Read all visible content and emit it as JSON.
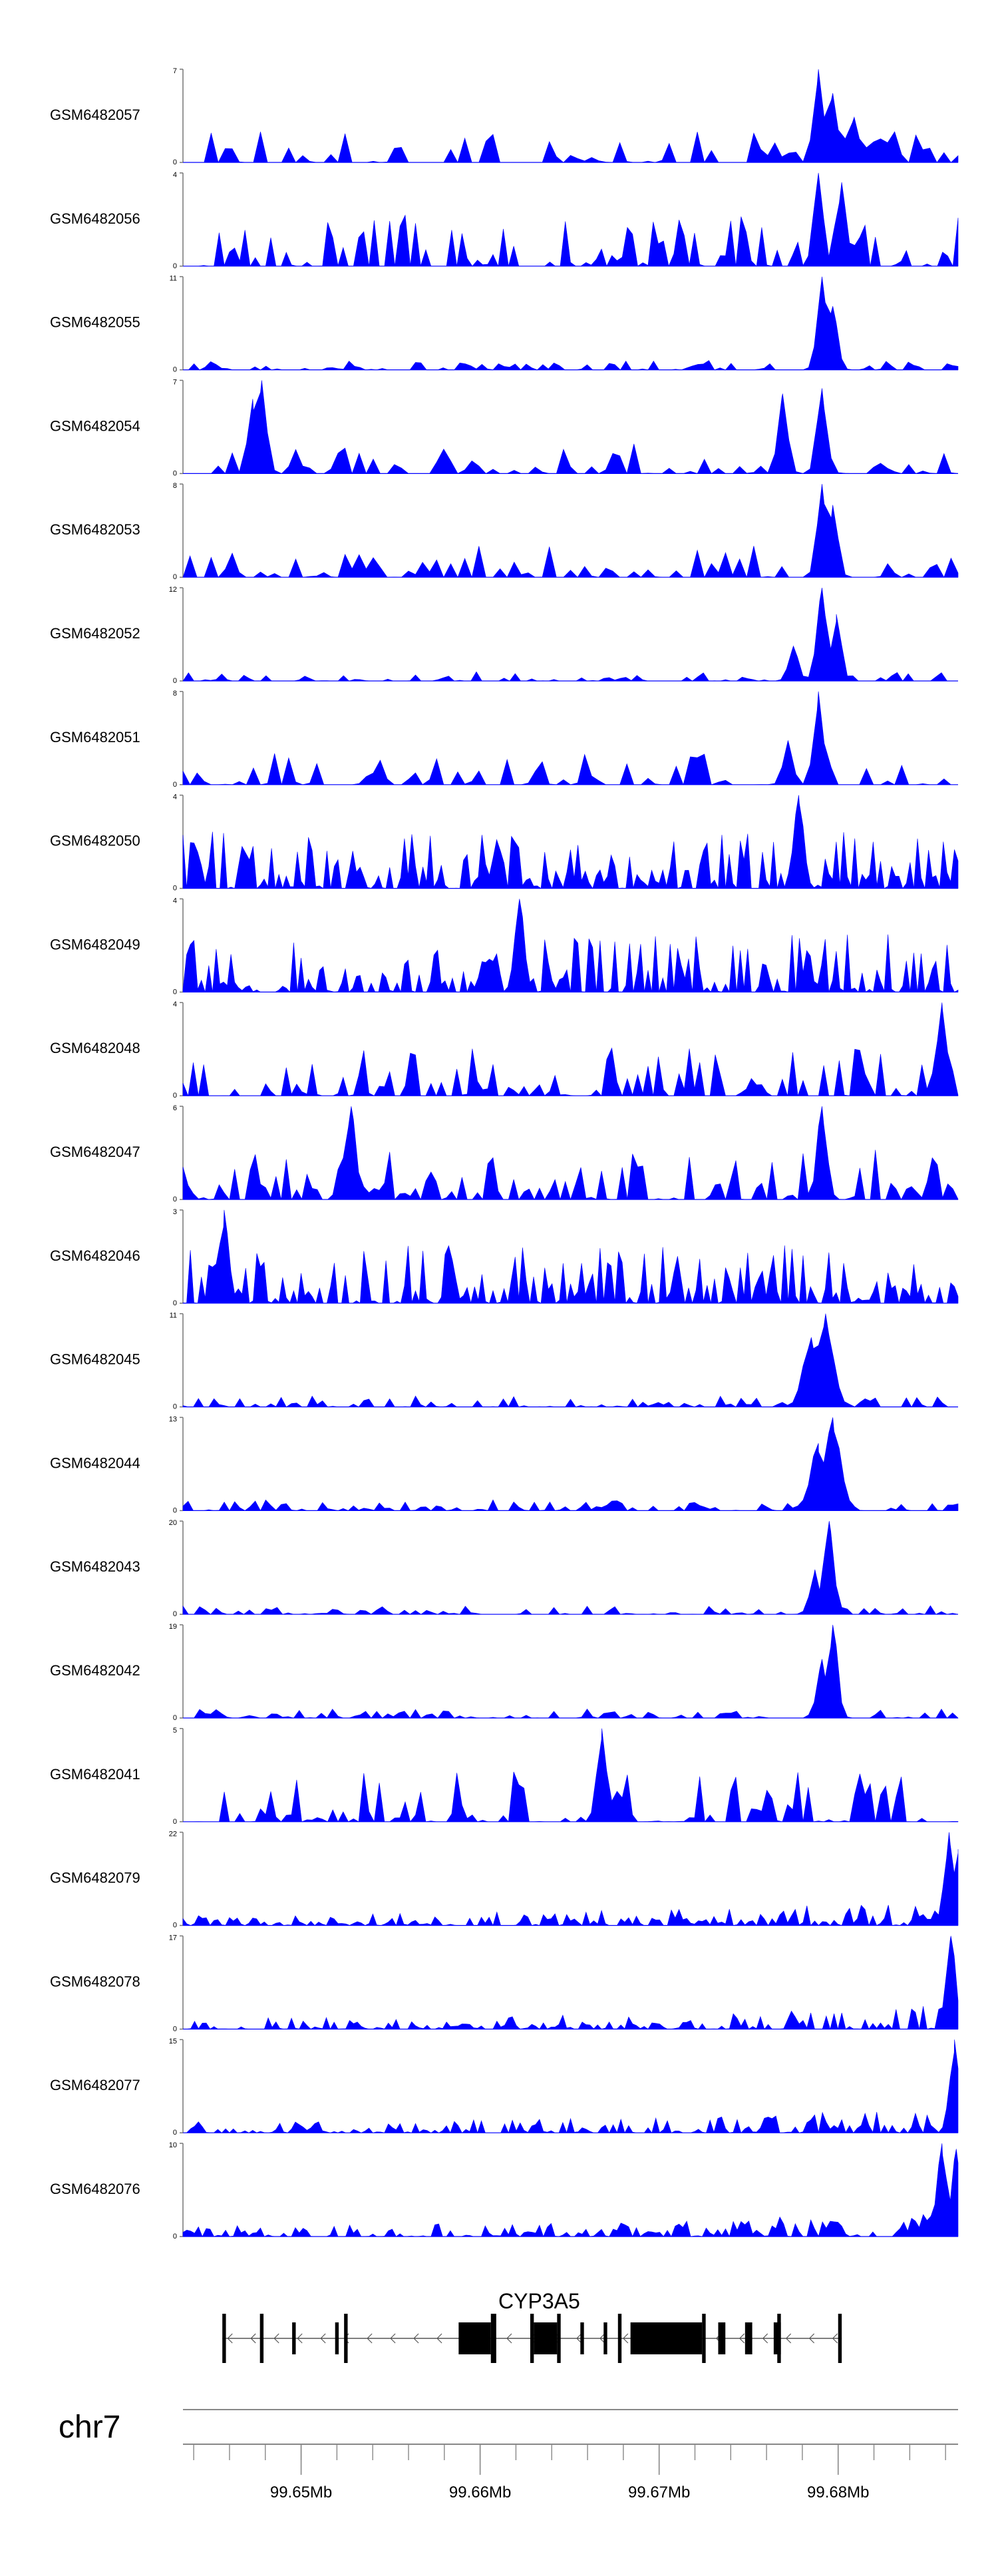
{
  "chart_data": {
    "type": "area",
    "chromosome": "chr7",
    "xlim": [
      99.6434,
      99.6867
    ],
    "x_ticks": [
      99.65,
      99.66,
      99.67,
      99.68
    ],
    "x_tick_labels": [
      "99.65Mb",
      "99.66Mb",
      "99.67Mb",
      "99.68Mb"
    ],
    "fill_color": "#0000ff",
    "tracks": [
      {
        "sample": "GSM6482057",
        "ymin": "0",
        "ymax": "7",
        "ylim": [
          0,
          7
        ],
        "style": "sparse",
        "peaks": [
          {
            "x": 99.6789,
            "y": 7
          },
          {
            "x": 99.6797,
            "y": 5.2
          },
          {
            "x": 99.6809,
            "y": 3.4
          }
        ]
      },
      {
        "sample": "GSM6482056",
        "ymin": "0",
        "ymax": "4",
        "ylim": [
          0,
          4
        ],
        "style": "spiky",
        "peaks": [
          {
            "x": 99.6789,
            "y": 4
          },
          {
            "x": 99.6802,
            "y": 3.6
          }
        ]
      },
      {
        "sample": "GSM6482055",
        "ymin": "0",
        "ymax": "11",
        "ylim": [
          0,
          11
        ],
        "style": "peak",
        "peaks": [
          {
            "x": 99.6791,
            "y": 11
          },
          {
            "x": 99.6797,
            "y": 7.5
          }
        ]
      },
      {
        "sample": "GSM6482054",
        "ymin": "0",
        "ymax": "7",
        "ylim": [
          0,
          7
        ],
        "style": "sparse",
        "peaks": [
          {
            "x": 99.6478,
            "y": 7
          },
          {
            "x": 99.6473,
            "y": 5.6
          },
          {
            "x": 99.6769,
            "y": 6
          },
          {
            "x": 99.6791,
            "y": 6.4
          }
        ]
      },
      {
        "sample": "GSM6482053",
        "ymin": "0",
        "ymax": "8",
        "ylim": [
          0,
          8
        ],
        "style": "sparse",
        "peaks": [
          {
            "x": 99.6791,
            "y": 8
          },
          {
            "x": 99.6797,
            "y": 6.2
          }
        ]
      },
      {
        "sample": "GSM6482052",
        "ymin": "0",
        "ymax": "12",
        "ylim": [
          0,
          12
        ],
        "style": "peak",
        "peaks": [
          {
            "x": 99.6791,
            "y": 12
          },
          {
            "x": 99.6799,
            "y": 8.6
          },
          {
            "x": 99.6775,
            "y": 4.5
          }
        ]
      },
      {
        "sample": "GSM6482051",
        "ymin": "0",
        "ymax": "8",
        "ylim": [
          0,
          8
        ],
        "style": "sparse",
        "peaks": [
          {
            "x": 99.6789,
            "y": 8
          },
          {
            "x": 99.6772,
            "y": 3.8
          }
        ]
      },
      {
        "sample": "GSM6482050",
        "ymin": "0",
        "ymax": "4",
        "ylim": [
          0,
          4
        ],
        "style": "dense",
        "peaks": [
          {
            "x": 99.6778,
            "y": 4
          }
        ]
      },
      {
        "sample": "GSM6482049",
        "ymin": "0",
        "ymax": "4",
        "ylim": [
          0,
          4
        ],
        "style": "dense",
        "peaks": [
          {
            "x": 99.6622,
            "y": 4
          }
        ]
      },
      {
        "sample": "GSM6482048",
        "ymin": "0",
        "ymax": "4",
        "ylim": [
          0,
          4
        ],
        "style": "spiky",
        "peaks": [
          {
            "x": 99.6858,
            "y": 4
          }
        ]
      },
      {
        "sample": "GSM6482047",
        "ymin": "0",
        "ymax": "6",
        "ylim": [
          0,
          6
        ],
        "style": "spiky",
        "peaks": [
          {
            "x": 99.6528,
            "y": 6
          },
          {
            "x": 99.6791,
            "y": 6
          }
        ]
      },
      {
        "sample": "GSM6482046",
        "ymin": "0",
        "ymax": "3",
        "ylim": [
          0,
          3
        ],
        "style": "dense",
        "peaks": [
          {
            "x": 99.6457,
            "y": 3
          }
        ]
      },
      {
        "sample": "GSM6482045",
        "ymin": "0",
        "ymax": "11",
        "ylim": [
          0,
          11
        ],
        "style": "broad",
        "peaks": [
          {
            "x": 99.6793,
            "y": 11
          },
          {
            "x": 99.6785,
            "y": 8.2
          }
        ]
      },
      {
        "sample": "GSM6482044",
        "ymin": "0",
        "ymax": "13",
        "ylim": [
          0,
          13
        ],
        "style": "broad",
        "peaks": [
          {
            "x": 99.6797,
            "y": 13
          },
          {
            "x": 99.6789,
            "y": 9.4
          }
        ]
      },
      {
        "sample": "GSM6482043",
        "ymin": "0",
        "ymax": "20",
        "ylim": [
          0,
          20
        ],
        "style": "peak",
        "peaks": [
          {
            "x": 99.6795,
            "y": 20
          },
          {
            "x": 99.6787,
            "y": 9.6
          }
        ]
      },
      {
        "sample": "GSM6482042",
        "ymin": "0",
        "ymax": "19",
        "ylim": [
          0,
          19
        ],
        "style": "peak",
        "peaks": [
          {
            "x": 99.6797,
            "y": 19
          },
          {
            "x": 99.6791,
            "y": 12
          }
        ]
      },
      {
        "sample": "GSM6482041",
        "ymin": "0",
        "ymax": "5",
        "ylim": [
          0,
          5
        ],
        "style": "spiky",
        "peaks": [
          {
            "x": 99.6668,
            "y": 5
          }
        ]
      },
      {
        "sample": "GSM6482079",
        "ymin": "0",
        "ymax": "22",
        "ylim": [
          0,
          22
        ],
        "style": "tail",
        "peaks": [
          {
            "x": 99.6862,
            "y": 22
          },
          {
            "x": 99.6867,
            "y": 18
          }
        ]
      },
      {
        "sample": "GSM6482078",
        "ymin": "0",
        "ymax": "17",
        "ylim": [
          0,
          17
        ],
        "style": "tail",
        "peaks": [
          {
            "x": 99.6863,
            "y": 17
          }
        ]
      },
      {
        "sample": "GSM6482077",
        "ymin": "0",
        "ymax": "15",
        "ylim": [
          0,
          15
        ],
        "style": "tail",
        "peaks": [
          {
            "x": 99.6865,
            "y": 15
          }
        ]
      },
      {
        "sample": "GSM6482076",
        "ymin": "0",
        "ymax": "10",
        "ylim": [
          0,
          10
        ],
        "style": "tail",
        "peaks": [
          {
            "x": 99.6858,
            "y": 10
          },
          {
            "x": 99.6866,
            "y": 9.4
          }
        ]
      }
    ],
    "gene_track": {
      "gene_name": "CYP3A5",
      "strand": "-",
      "start": 99.6456,
      "end": 99.6802,
      "exons": [
        {
          "start": 99.6456,
          "end": 99.6458,
          "height": "full"
        },
        {
          "start": 99.6477,
          "end": 99.6479,
          "height": "full"
        },
        {
          "start": 99.6495,
          "end": 99.6497,
          "height": "mid"
        },
        {
          "start": 99.6519,
          "end": 99.6521,
          "height": "mid"
        },
        {
          "start": 99.6524,
          "end": 99.6526,
          "height": "full"
        },
        {
          "start": 99.6588,
          "end": 99.6606,
          "height": "mid"
        },
        {
          "start": 99.6606,
          "end": 99.6609,
          "height": "full"
        },
        {
          "start": 99.6628,
          "end": 99.663,
          "height": "full"
        },
        {
          "start": 99.663,
          "end": 99.6643,
          "height": "mid"
        },
        {
          "start": 99.6643,
          "end": 99.6645,
          "height": "full"
        },
        {
          "start": 99.6656,
          "end": 99.6658,
          "height": "mid"
        },
        {
          "start": 99.6669,
          "end": 99.6671,
          "height": "mid"
        },
        {
          "start": 99.6677,
          "end": 99.6679,
          "height": "full"
        },
        {
          "start": 99.6684,
          "end": 99.6724,
          "height": "mid"
        },
        {
          "start": 99.6724,
          "end": 99.6726,
          "height": "full"
        },
        {
          "start": 99.6733,
          "end": 99.6737,
          "height": "mid"
        },
        {
          "start": 99.6748,
          "end": 99.6752,
          "height": "mid"
        },
        {
          "start": 99.6764,
          "end": 99.6768,
          "height": "mid"
        },
        {
          "start": 99.6766,
          "end": 99.6768,
          "height": "full"
        },
        {
          "start": 99.68,
          "end": 99.6802,
          "height": "full"
        }
      ]
    }
  }
}
